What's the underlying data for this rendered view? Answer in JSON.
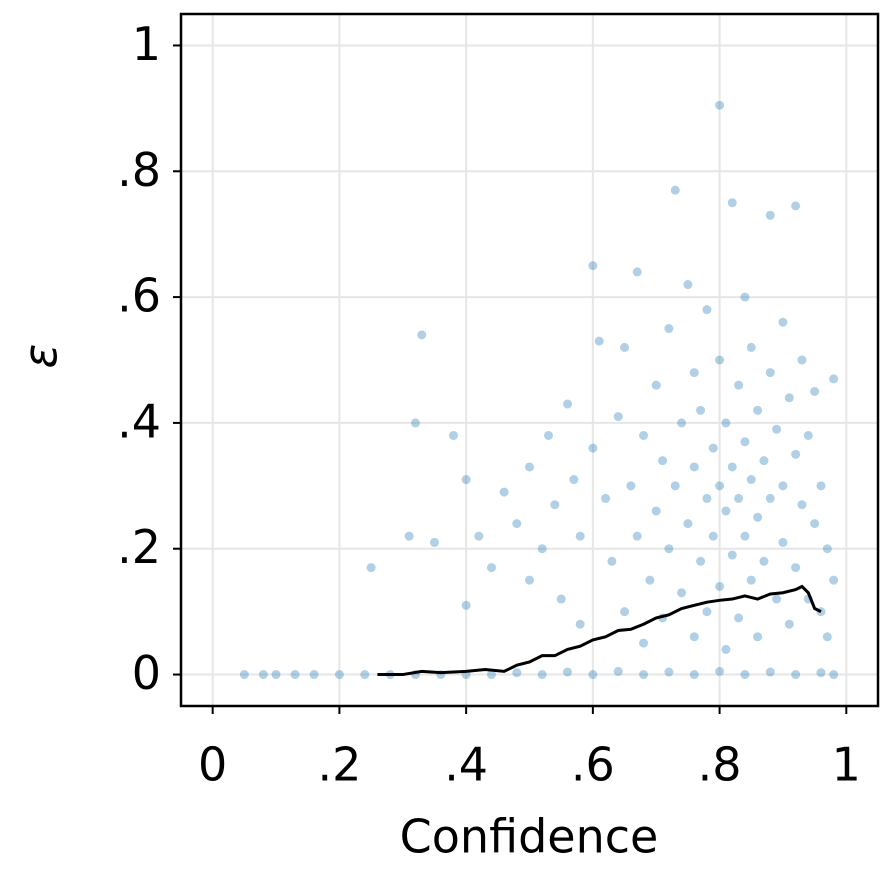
{
  "chart_data": {
    "type": "scatter",
    "x_label": "Confidence",
    "y_label": "ε",
    "xlim": [
      -0.05,
      1.05
    ],
    "ylim": [
      -0.05,
      1.05
    ],
    "xticks": [
      0,
      {
        "value": 0.2,
        "label": ".2"
      },
      {
        "value": 0.4,
        "label": ".4"
      },
      {
        "value": 0.6,
        "label": ".6"
      },
      {
        "value": 0.8,
        "label": ".8"
      },
      1
    ],
    "yticks": [
      0,
      {
        "value": 0.2,
        "label": ".2"
      },
      {
        "value": 0.4,
        "label": ".4"
      },
      {
        "value": 0.6,
        "label": ".6"
      },
      {
        "value": 0.8,
        "label": ".8"
      },
      1
    ],
    "grid": true,
    "series": [
      {
        "type": "scatter",
        "color": "#1f77b4",
        "x": [
          0.05,
          0.08,
          0.1,
          0.13,
          0.16,
          0.2,
          0.24,
          0.28,
          0.32,
          0.36,
          0.4,
          0.44,
          0.48,
          0.52,
          0.56,
          0.6,
          0.64,
          0.68,
          0.72,
          0.76,
          0.8,
          0.84,
          0.88,
          0.92,
          0.96,
          0.98,
          0.33,
          0.32,
          0.38,
          0.25,
          0.31,
          0.35,
          0.4,
          0.42,
          0.44,
          0.4,
          0.46,
          0.48,
          0.5,
          0.5,
          0.52,
          0.53,
          0.54,
          0.55,
          0.56,
          0.57,
          0.58,
          0.58,
          0.6,
          0.6,
          0.61,
          0.62,
          0.63,
          0.64,
          0.65,
          0.65,
          0.66,
          0.67,
          0.67,
          0.68,
          0.68,
          0.69,
          0.7,
          0.7,
          0.71,
          0.71,
          0.72,
          0.72,
          0.73,
          0.73,
          0.74,
          0.74,
          0.75,
          0.75,
          0.76,
          0.76,
          0.76,
          0.77,
          0.77,
          0.78,
          0.78,
          0.78,
          0.79,
          0.79,
          0.8,
          0.8,
          0.8,
          0.8,
          0.81,
          0.81,
          0.81,
          0.82,
          0.82,
          0.82,
          0.83,
          0.83,
          0.83,
          0.84,
          0.84,
          0.84,
          0.85,
          0.85,
          0.85,
          0.86,
          0.86,
          0.86,
          0.87,
          0.87,
          0.88,
          0.88,
          0.88,
          0.89,
          0.89,
          0.9,
          0.9,
          0.9,
          0.91,
          0.91,
          0.92,
          0.92,
          0.92,
          0.93,
          0.93,
          0.94,
          0.94,
          0.95,
          0.95,
          0.96,
          0.96,
          0.97,
          0.98,
          0.98,
          0.97
        ],
        "values": [
          0,
          0,
          0,
          0,
          0,
          0,
          0,
          0,
          0,
          0,
          0,
          0,
          0.003,
          0,
          0.004,
          0,
          0.005,
          0,
          0.004,
          0,
          0.005,
          0,
          0.004,
          0,
          0.003,
          0,
          0.54,
          0.4,
          0.38,
          0.17,
          0.22,
          0.21,
          0.31,
          0.22,
          0.17,
          0.11,
          0.29,
          0.24,
          0.33,
          0.15,
          0.2,
          0.38,
          0.27,
          0.12,
          0.43,
          0.31,
          0.22,
          0.08,
          0.65,
          0.36,
          0.53,
          0.28,
          0.18,
          0.41,
          0.1,
          0.52,
          0.3,
          0.64,
          0.22,
          0.38,
          0.05,
          0.15,
          0.46,
          0.26,
          0.34,
          0.09,
          0.55,
          0.2,
          0.77,
          0.3,
          0.4,
          0.13,
          0.62,
          0.24,
          0.48,
          0.33,
          0.06,
          0.18,
          0.42,
          0.28,
          0.58,
          0.1,
          0.36,
          0.22,
          0.905,
          0.5,
          0.3,
          0.14,
          0.4,
          0.26,
          0.04,
          0.75,
          0.33,
          0.19,
          0.46,
          0.28,
          0.09,
          0.6,
          0.37,
          0.22,
          0.31,
          0.15,
          0.52,
          0.42,
          0.25,
          0.06,
          0.34,
          0.18,
          0.73,
          0.48,
          0.28,
          0.39,
          0.12,
          0.56,
          0.3,
          0.21,
          0.44,
          0.08,
          0.745,
          0.35,
          0.17,
          0.27,
          0.5,
          0.38,
          0.12,
          0.24,
          0.45,
          0.3,
          0.1,
          0.2,
          0.47,
          0.15,
          0.06
        ]
      },
      {
        "type": "line",
        "color": "#000000",
        "x": [
          0.26,
          0.3,
          0.33,
          0.36,
          0.4,
          0.43,
          0.46,
          0.48,
          0.5,
          0.52,
          0.54,
          0.56,
          0.58,
          0.6,
          0.62,
          0.64,
          0.66,
          0.68,
          0.7,
          0.72,
          0.74,
          0.76,
          0.78,
          0.8,
          0.82,
          0.84,
          0.86,
          0.88,
          0.9,
          0.92,
          0.93,
          0.94,
          0.95,
          0.96
        ],
        "values": [
          0,
          0,
          0.005,
          0.003,
          0.005,
          0.008,
          0.005,
          0.015,
          0.02,
          0.03,
          0.03,
          0.04,
          0.045,
          0.055,
          0.06,
          0.07,
          0.072,
          0.08,
          0.09,
          0.095,
          0.105,
          0.11,
          0.115,
          0.118,
          0.12,
          0.125,
          0.12,
          0.128,
          0.13,
          0.135,
          0.14,
          0.13,
          0.105,
          0.1
        ]
      }
    ]
  }
}
